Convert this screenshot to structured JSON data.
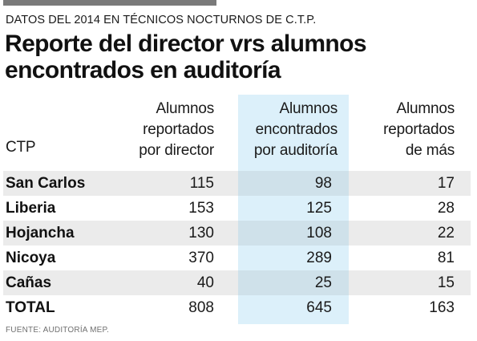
{
  "header": {
    "subtitle": "DATOS DEL 2014 EN TÉCNICOS NOCTURNOS DE C.T.P.",
    "title_line1": "Reporte del director vrs alumnos",
    "title_line2": "encontrados en auditoría"
  },
  "table": {
    "columns": [
      {
        "label": "CTP"
      },
      {
        "lines": [
          "Alumnos",
          "reportados",
          "por director"
        ]
      },
      {
        "lines": [
          "Alumnos",
          "encontrados",
          "por auditoría"
        ]
      },
      {
        "lines": [
          "Alumnos",
          "reportados",
          "de más"
        ]
      }
    ],
    "rows": [
      {
        "ctp": "San Carlos",
        "director": "115",
        "auditoria": "98",
        "de_mas": "17"
      },
      {
        "ctp": "Liberia",
        "director": "153",
        "auditoria": "125",
        "de_mas": "28"
      },
      {
        "ctp": "Hojancha",
        "director": "130",
        "auditoria": "108",
        "de_mas": "22"
      },
      {
        "ctp": "Nicoya",
        "director": "370",
        "auditoria": "289",
        "de_mas": "81"
      },
      {
        "ctp": "Cañas",
        "director": "40",
        "auditoria": "25",
        "de_mas": "15"
      },
      {
        "ctp": "TOTAL",
        "director": "808",
        "auditoria": "645",
        "de_mas": "163"
      }
    ]
  },
  "source": "FUENTE: AUDITORÍA MEP.",
  "colors": {
    "top_bar": "#7a7a7a",
    "stripe": "#ebebeb",
    "highlight_column": "#dcf0fa",
    "highlight_stripe": "#cfe1ea"
  }
}
